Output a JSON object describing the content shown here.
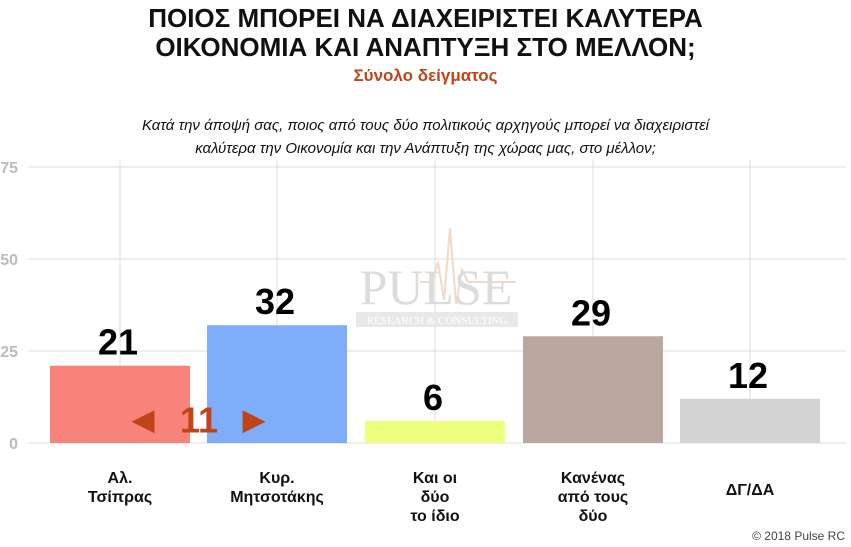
{
  "title_lines": [
    "ΠΟΙΟΣ ΜΠΟΡΕΙ ΝΑ ΔΙΑΧΕΙΡΙΣΤΕΙ ΚΑΛΥΤΕΡΑ",
    "ΟΙΚΟΝΟΜΙΑ ΚΑΙ ΑΝΑΠΤΥΞΗ ΣΤΟ ΜΕΛΛΟΝ;"
  ],
  "subtitle": "Σύνολο δείγματος",
  "question_lines": [
    "Κατά την άποψή σας, ποιος από τους δύο πολιτικούς αρχηγούς μπορεί να διαχειριστεί",
    "καλύτερα την Οικονομία και την Ανάπτυξη της χώρας μας, στο μέλλον;"
  ],
  "watermark": {
    "main": "PULSE",
    "sub": "RESEARCH & CONSULTING"
  },
  "footer": "© 2018 Pulse RC",
  "colors": {
    "title": "#111111",
    "subtitle": "#c0431a",
    "difference": "#c0431a",
    "grid": "#dddddd",
    "axis_text": "#bbbbbb"
  },
  "chart_data": {
    "type": "bar",
    "title": "ΠΟΙΟΣ ΜΠΟΡΕΙ ΝΑ ΔΙΑΧΕΙΡΙΣΤΕΙ ΚΑΛΥΤΕΡΑ ΟΙΚΟΝΟΜΙΑ ΚΑΙ ΑΝΑΠΤΥΞΗ ΣΤΟ ΜΕΛΛΟΝ;",
    "subtitle": "Σύνολο δείγματος",
    "categories": [
      [
        "Αλ.",
        "Τσίπρας"
      ],
      [
        "Κυρ.",
        "Μητσοτάκης"
      ],
      [
        "Και οι",
        "δύο",
        "το ίδιο"
      ],
      [
        "Κανένας",
        "από τους",
        "δύο"
      ],
      [
        "ΔΓ/ΔΑ"
      ]
    ],
    "values": [
      21,
      32,
      6,
      29,
      12
    ],
    "bar_colors": [
      "#f8837a",
      "#80adfa",
      "#eeff80",
      "#baa8a0",
      "#d3d3d3"
    ],
    "ylim": [
      0,
      75
    ],
    "yticks": [
      0,
      25,
      50,
      75
    ],
    "ytick_labels": [
      "0",
      "25",
      "50",
      "75"
    ],
    "xlabel": "",
    "ylabel": "",
    "grid": true,
    "legend": "none",
    "annotation": {
      "text": "11",
      "left_arrow": "◀",
      "right_arrow": "▶"
    }
  }
}
